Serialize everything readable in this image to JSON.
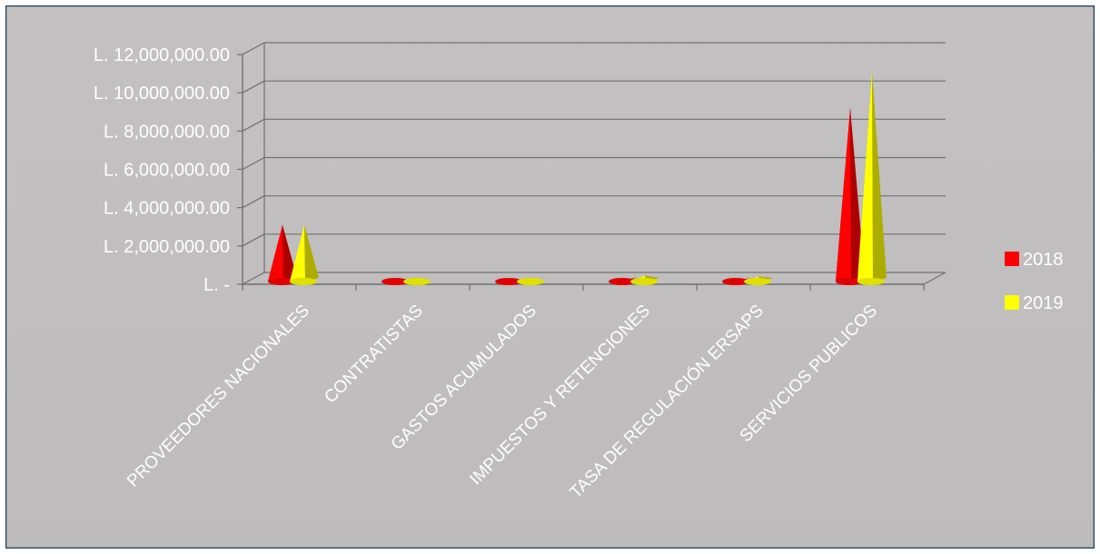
{
  "chart_data": {
    "type": "bar",
    "style": "3d-cone",
    "categories": [
      "PROVEEDORES NACIONALES",
      "CONTRATISTAS",
      "GASTOS ACUMULADOS",
      "IMPUESTOS Y RETENCIONES",
      "TASA DE REGULACIÓN ERSAPS",
      "SERVICIOS PUBLICOS"
    ],
    "series": [
      {
        "name": "2018",
        "color": "#ff0000",
        "values": [
          3100000,
          150000,
          120000,
          250000,
          200000,
          9200000
        ]
      },
      {
        "name": "2019",
        "color": "#ffff00",
        "values": [
          3100000,
          130000,
          110000,
          450000,
          400000,
          11100000
        ]
      }
    ],
    "ytick_labels": [
      "L. -",
      "L. 2,000,000.00",
      "L. 4,000,000.00",
      "L. 6,000,000.00",
      "L. 8,000,000.00",
      "L. 10,000,000.00",
      "L. 12,000,000.00"
    ],
    "ylim": [
      0,
      12000000
    ],
    "ytick_step": 2000000,
    "grid": true,
    "legend_position": "right",
    "background_color": "#c0bebe",
    "border_color": "#1f3d57"
  }
}
